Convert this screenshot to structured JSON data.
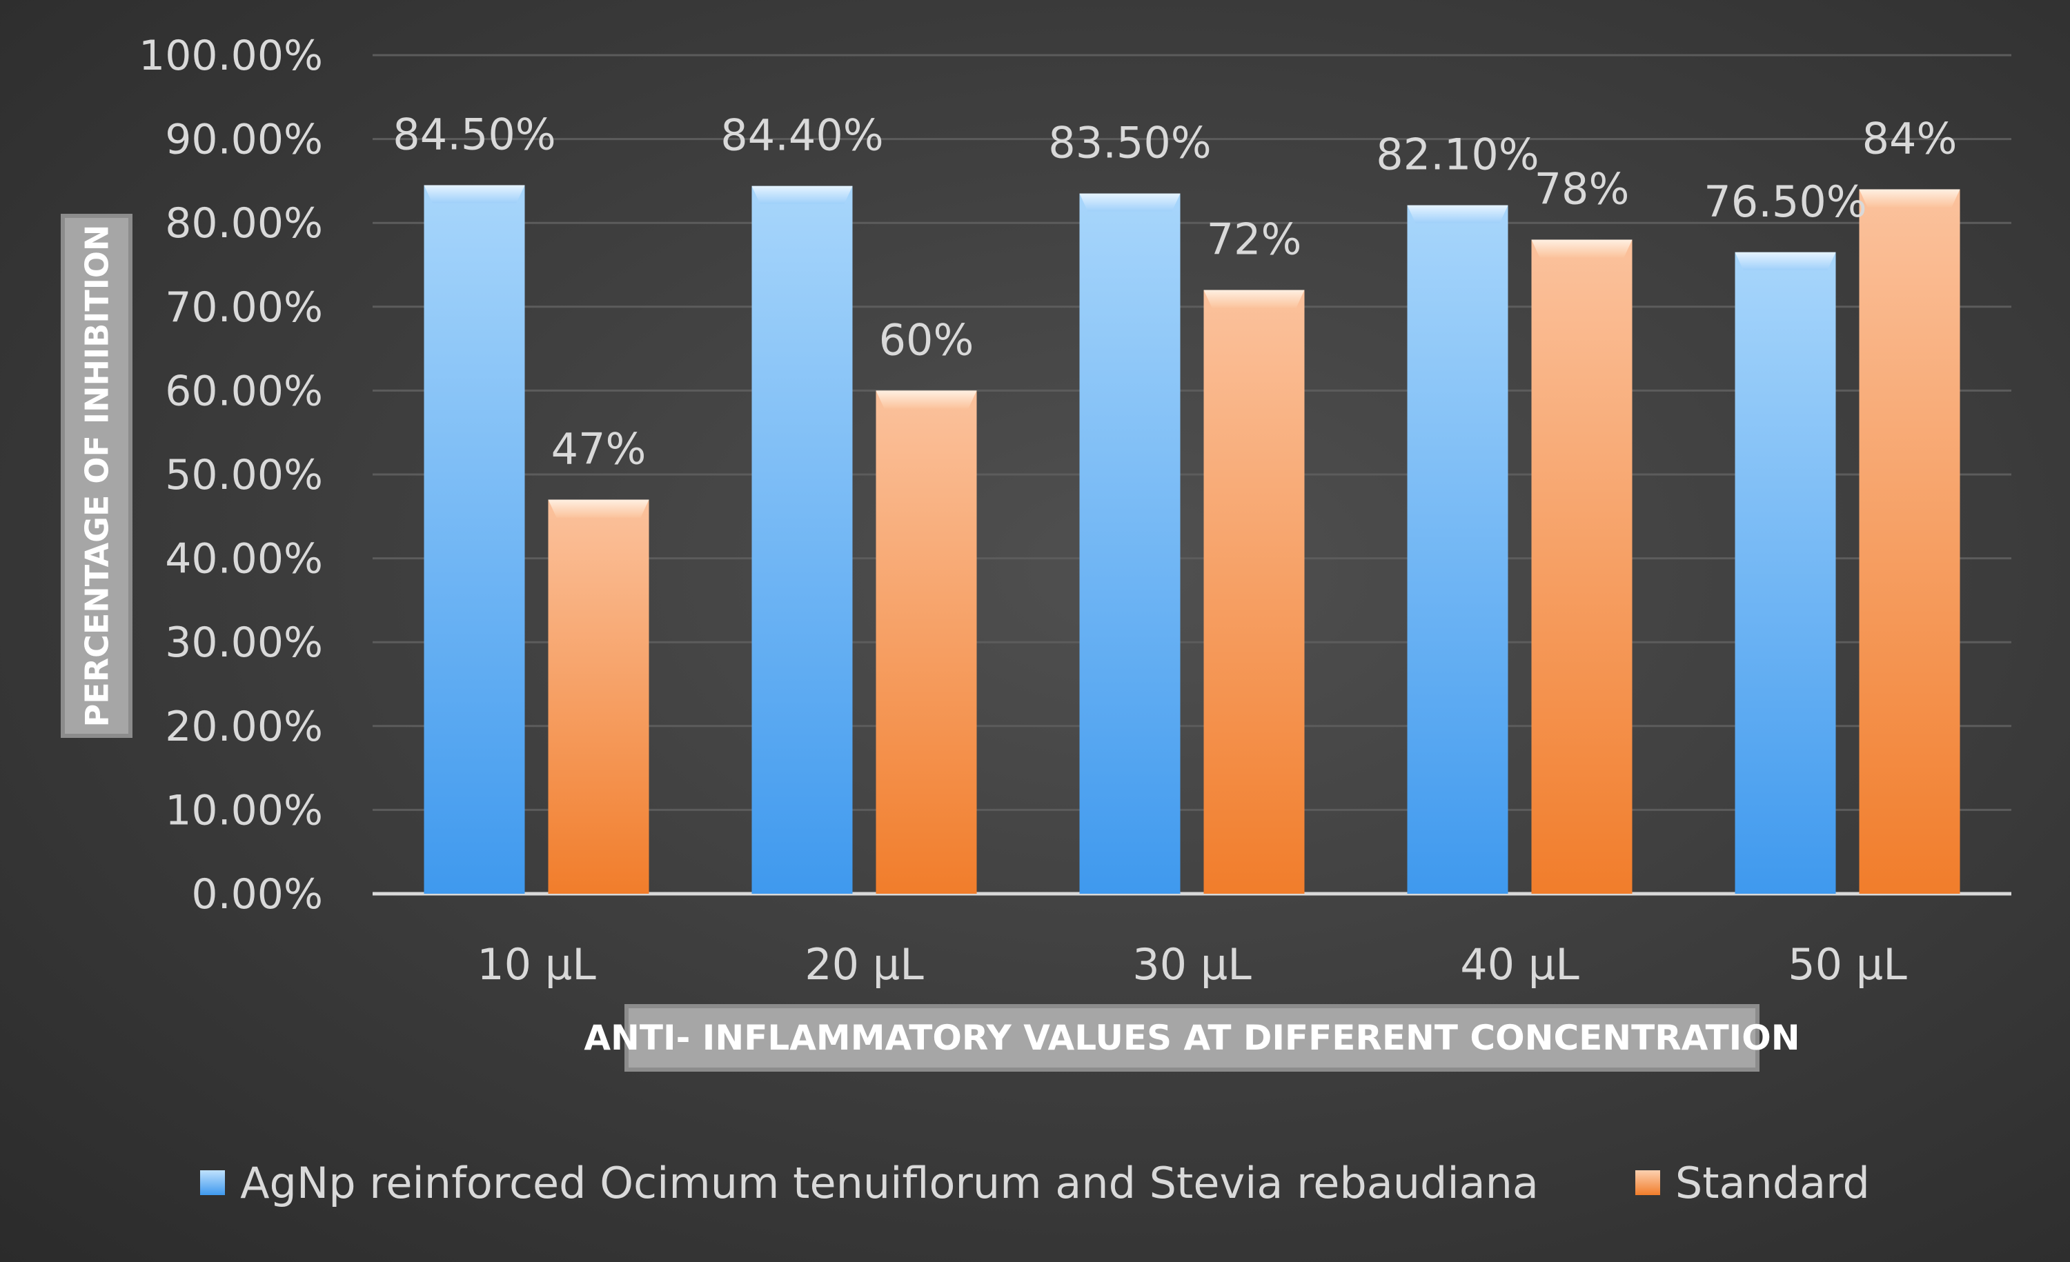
{
  "chart_data": {
    "type": "bar",
    "title": "",
    "xlabel": "ANTI- INFLAMMATORY VALUES AT DIFFERENT CONCENTRATION",
    "ylabel": "PERCENTAGE OF INHIBITION",
    "categories": [
      "10 µL",
      "20 µL",
      "30 µL",
      "40 µL",
      "50 µL"
    ],
    "ylim": [
      0,
      100
    ],
    "yticks": [
      0,
      10,
      20,
      30,
      40,
      50,
      60,
      70,
      80,
      90,
      100
    ],
    "ytick_labels": [
      "0.00%",
      "10.00%",
      "20.00%",
      "30.00%",
      "40.00%",
      "50.00%",
      "60.00%",
      "70.00%",
      "80.00%",
      "90.00%",
      "100.00%"
    ],
    "grid": true,
    "legend_position": "bottom",
    "series": [
      {
        "name": "AgNp reinforced Ocimum tenuiflorum and Stevia rebaudiana",
        "values": [
          84.5,
          84.4,
          83.5,
          82.1,
          76.5
        ],
        "labels": [
          "84.50%",
          "84.40%",
          "83.50%",
          "82.10%",
          "76.50%"
        ],
        "color": "#5aaaf0"
      },
      {
        "name": "Standard",
        "values": [
          47,
          60,
          72,
          78,
          84
        ],
        "labels": [
          "47%",
          "60%",
          "72%",
          "78%",
          "84%"
        ],
        "color": "#f5924a"
      }
    ]
  }
}
